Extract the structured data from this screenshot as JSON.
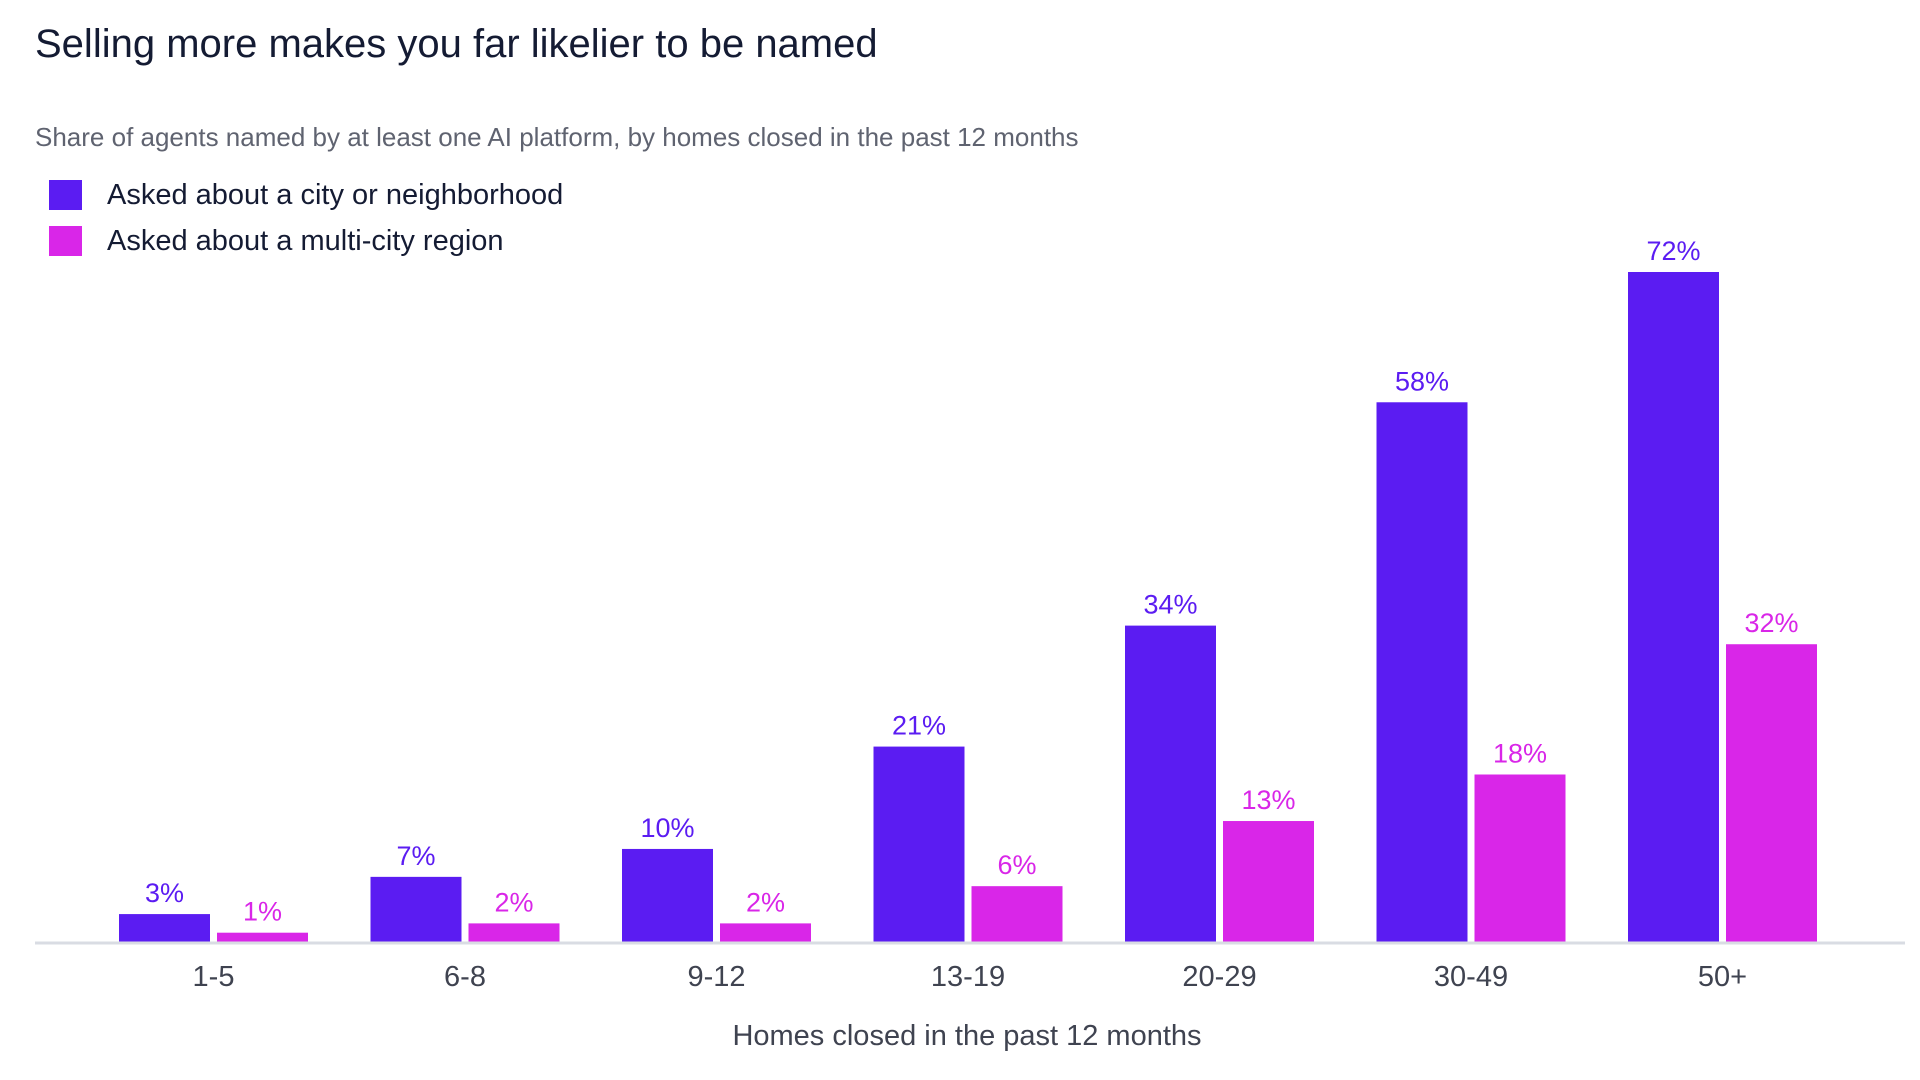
{
  "chart_data": {
    "type": "bar",
    "title": "Selling more makes you far likelier to be named",
    "subtitle": "Share of agents named by at least one AI platform, by homes closed in the past 12 months",
    "xlabel": "Homes closed in the past 12 months",
    "ylabel": "",
    "categories": [
      "1-5",
      "6-8",
      "9-12",
      "13-19",
      "20-29",
      "30-49",
      "50+"
    ],
    "series": [
      {
        "name": "Asked about a city or neighborhood",
        "color": "#5b1cf2",
        "values": [
          3,
          7,
          10,
          21,
          34,
          58,
          72
        ],
        "labels": [
          "3%",
          "7%",
          "10%",
          "21%",
          "34%",
          "58%",
          "72%"
        ]
      },
      {
        "name": "Asked about a multi-city region",
        "color": "#d926e8",
        "values": [
          1,
          2,
          2,
          6,
          13,
          18,
          32
        ],
        "labels": [
          "1%",
          "2%",
          "2%",
          "6%",
          "13%",
          "18%",
          "32%"
        ]
      }
    ],
    "ylim": [
      0,
      72
    ],
    "grid": false,
    "legend_position": "top-left"
  }
}
